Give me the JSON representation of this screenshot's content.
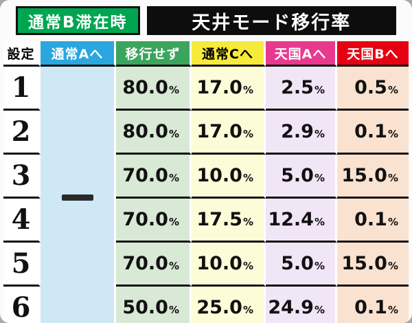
{
  "page": {
    "badge": "通常B滞在時",
    "title": "天井モード移行率"
  },
  "table": {
    "headers": [
      {
        "label": "設定",
        "bg": "#ffffff",
        "fg": "#000000"
      },
      {
        "label": "通常Aへ",
        "bg": "#2ba6df",
        "fg": "#ffffff"
      },
      {
        "label": "移行せず",
        "bg": "#3ba55d",
        "fg": "#ffffff"
      },
      {
        "label": "通常Cへ",
        "bg": "#f6ea3b",
        "fg": "#000000"
      },
      {
        "label": "天国Aへ",
        "bg": "#e8398f",
        "fg": "#ffffff"
      },
      {
        "label": "天国Bへ",
        "bg": "#e60012",
        "fg": "#ffffff"
      }
    ],
    "column_bgs": [
      "#ffffff",
      "#cfe8f5",
      "#d8e9d5",
      "#fcfcd8",
      "#f1e6f6",
      "#fae2d0"
    ],
    "merged_cell_dash": "—",
    "percent_sign": "%",
    "rows": [
      {
        "setting": "1",
        "values": [
          "80.0",
          "17.0",
          "2.5",
          "0.5"
        ]
      },
      {
        "setting": "2",
        "values": [
          "80.0",
          "17.0",
          "2.9",
          "0.1"
        ]
      },
      {
        "setting": "3",
        "values": [
          "70.0",
          "10.0",
          "5.0",
          "15.0"
        ]
      },
      {
        "setting": "4",
        "values": [
          "70.0",
          "17.5",
          "12.4",
          "0.1"
        ]
      },
      {
        "setting": "5",
        "values": [
          "70.0",
          "10.0",
          "5.0",
          "15.0"
        ]
      },
      {
        "setting": "6",
        "values": [
          "50.0",
          "25.0",
          "24.9",
          "0.1"
        ]
      }
    ]
  },
  "chart_data": {
    "type": "table",
    "title": "通常B滞在時 天井モード移行率",
    "columns": [
      "設定",
      "通常Aへ",
      "移行せず",
      "通常Cへ",
      "天国Aへ",
      "天国Bへ"
    ],
    "rows": [
      [
        "1",
        "—",
        "80.0%",
        "17.0%",
        "2.5%",
        "0.5%"
      ],
      [
        "2",
        "—",
        "80.0%",
        "17.0%",
        "2.9%",
        "0.1%"
      ],
      [
        "3",
        "—",
        "70.0%",
        "10.0%",
        "5.0%",
        "15.0%"
      ],
      [
        "4",
        "—",
        "70.0%",
        "17.5%",
        "12.4%",
        "0.1%"
      ],
      [
        "5",
        "—",
        "70.0%",
        "10.0%",
        "5.0%",
        "15.0%"
      ],
      [
        "6",
        "—",
        "50.0%",
        "25.0%",
        "24.9%",
        "0.1%"
      ]
    ],
    "notes": "通常Aへ column is a single merged cell for settings 1-6 containing a dash (no transition data)"
  }
}
